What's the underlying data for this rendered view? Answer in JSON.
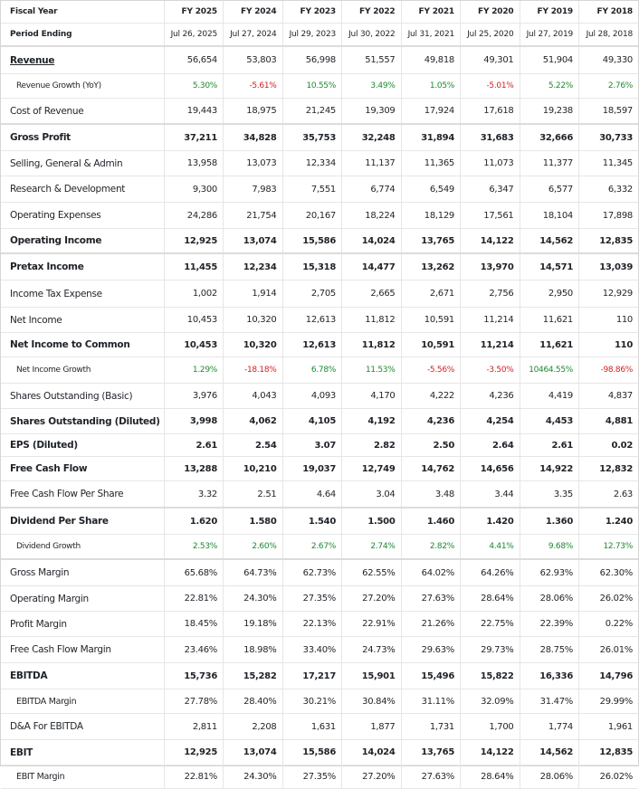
{
  "columns": [
    "FY 2025",
    "FY 2024",
    "FY 2023",
    "FY 2022",
    "FY 2021",
    "FY 2020",
    "FY 2019",
    "FY 2018"
  ],
  "header": {
    "fiscal_year_label": "Fiscal Year",
    "period_ending_label": "Period Ending",
    "period_ending": [
      "Jul 26, 2025",
      "Jul 27, 2024",
      "Jul 29, 2023",
      "Jul 30, 2022",
      "Jul 31, 2021",
      "Jul 25, 2020",
      "Jul 27, 2019",
      "Jul 28, 2018"
    ]
  },
  "rows": [
    {
      "label": "Revenue",
      "values": [
        "56,654",
        "53,803",
        "56,998",
        "51,557",
        "49,818",
        "49,301",
        "51,904",
        "49,330"
      ]
    },
    {
      "label": "Revenue Growth (YoY)",
      "values": [
        "5.30%",
        "-5.61%",
        "10.55%",
        "3.49%",
        "1.05%",
        "-5.01%",
        "5.22%",
        "2.76%"
      ]
    },
    {
      "label": "Cost of Revenue",
      "values": [
        "19,443",
        "18,975",
        "21,245",
        "19,309",
        "17,924",
        "17,618",
        "19,238",
        "18,597"
      ]
    },
    {
      "label": "Gross Profit",
      "values": [
        "37,211",
        "34,828",
        "35,753",
        "32,248",
        "31,894",
        "31,683",
        "32,666",
        "30,733"
      ]
    },
    {
      "label": "Selling, General & Admin",
      "values": [
        "13,958",
        "13,073",
        "12,334",
        "11,137",
        "11,365",
        "11,073",
        "11,377",
        "11,345"
      ]
    },
    {
      "label": "Research & Development",
      "values": [
        "9,300",
        "7,983",
        "7,551",
        "6,774",
        "6,549",
        "6,347",
        "6,577",
        "6,332"
      ]
    },
    {
      "label": "Operating Expenses",
      "values": [
        "24,286",
        "21,754",
        "20,167",
        "18,224",
        "18,129",
        "17,561",
        "18,104",
        "17,898"
      ]
    },
    {
      "label": "Operating Income",
      "values": [
        "12,925",
        "13,074",
        "15,586",
        "14,024",
        "13,765",
        "14,122",
        "14,562",
        "12,835"
      ]
    },
    {
      "label": "Pretax Income",
      "values": [
        "11,455",
        "12,234",
        "15,318",
        "14,477",
        "13,262",
        "13,970",
        "14,571",
        "13,039"
      ]
    },
    {
      "label": "Income Tax Expense",
      "values": [
        "1,002",
        "1,914",
        "2,705",
        "2,665",
        "2,671",
        "2,756",
        "2,950",
        "12,929"
      ]
    },
    {
      "label": "Net Income",
      "values": [
        "10,453",
        "10,320",
        "12,613",
        "11,812",
        "10,591",
        "11,214",
        "11,621",
        "110"
      ]
    },
    {
      "label": "Net Income to Common",
      "values": [
        "10,453",
        "10,320",
        "12,613",
        "11,812",
        "10,591",
        "11,214",
        "11,621",
        "110"
      ]
    },
    {
      "label": "Net Income Growth",
      "values": [
        "1.29%",
        "-18.18%",
        "6.78%",
        "11.53%",
        "-5.56%",
        "-3.50%",
        "10464.55%",
        "-98.86%"
      ]
    },
    {
      "label": "Shares Outstanding (Basic)",
      "values": [
        "3,976",
        "4,043",
        "4,093",
        "4,170",
        "4,222",
        "4,236",
        "4,419",
        "4,837"
      ]
    },
    {
      "label": "Shares Outstanding (Diluted)",
      "values": [
        "3,998",
        "4,062",
        "4,105",
        "4,192",
        "4,236",
        "4,254",
        "4,453",
        "4,881"
      ]
    },
    {
      "label": "EPS (Diluted)",
      "values": [
        "2.61",
        "2.54",
        "3.07",
        "2.82",
        "2.50",
        "2.64",
        "2.61",
        "0.02"
      ]
    },
    {
      "label": "Free Cash Flow",
      "values": [
        "13,288",
        "10,210",
        "19,037",
        "12,749",
        "14,762",
        "14,656",
        "14,922",
        "12,832"
      ]
    },
    {
      "label": "Free Cash Flow Per Share",
      "values": [
        "3.32",
        "2.51",
        "4.64",
        "3.04",
        "3.48",
        "3.44",
        "3.35",
        "2.63"
      ]
    },
    {
      "label": "Dividend Per Share",
      "values": [
        "1.620",
        "1.580",
        "1.540",
        "1.500",
        "1.460",
        "1.420",
        "1.360",
        "1.240"
      ]
    },
    {
      "label": "Dividend Growth",
      "values": [
        "2.53%",
        "2.60%",
        "2.67%",
        "2.74%",
        "2.82%",
        "4.41%",
        "9.68%",
        "12.73%"
      ]
    },
    {
      "label": "Gross Margin",
      "values": [
        "65.68%",
        "64.73%",
        "62.73%",
        "62.55%",
        "64.02%",
        "64.26%",
        "62.93%",
        "62.30%"
      ]
    },
    {
      "label": "Operating Margin",
      "values": [
        "22.81%",
        "24.30%",
        "27.35%",
        "27.20%",
        "27.63%",
        "28.64%",
        "28.06%",
        "26.02%"
      ]
    },
    {
      "label": "Profit Margin",
      "values": [
        "18.45%",
        "19.18%",
        "22.13%",
        "22.91%",
        "21.26%",
        "22.75%",
        "22.39%",
        "0.22%"
      ]
    },
    {
      "label": "Free Cash Flow Margin",
      "values": [
        "23.46%",
        "18.98%",
        "33.40%",
        "24.73%",
        "29.63%",
        "29.73%",
        "28.75%",
        "26.01%"
      ]
    },
    {
      "label": "EBITDA",
      "values": [
        "15,736",
        "15,282",
        "17,217",
        "15,901",
        "15,496",
        "15,822",
        "16,336",
        "14,796"
      ]
    },
    {
      "label": "EBITDA Margin",
      "values": [
        "27.78%",
        "28.40%",
        "30.21%",
        "30.84%",
        "31.11%",
        "32.09%",
        "31.47%",
        "29.99%"
      ]
    },
    {
      "label": "D&A For EBITDA",
      "values": [
        "2,811",
        "2,208",
        "1,631",
        "1,877",
        "1,731",
        "1,700",
        "1,774",
        "1,961"
      ]
    },
    {
      "label": "EBIT",
      "values": [
        "12,925",
        "13,074",
        "15,586",
        "14,024",
        "13,765",
        "14,122",
        "14,562",
        "12,835"
      ]
    },
    {
      "label": "EBIT Margin",
      "values": [
        "22.81%",
        "24.30%",
        "27.35%",
        "27.20%",
        "27.63%",
        "28.64%",
        "28.06%",
        "26.02%"
      ]
    }
  ]
}
